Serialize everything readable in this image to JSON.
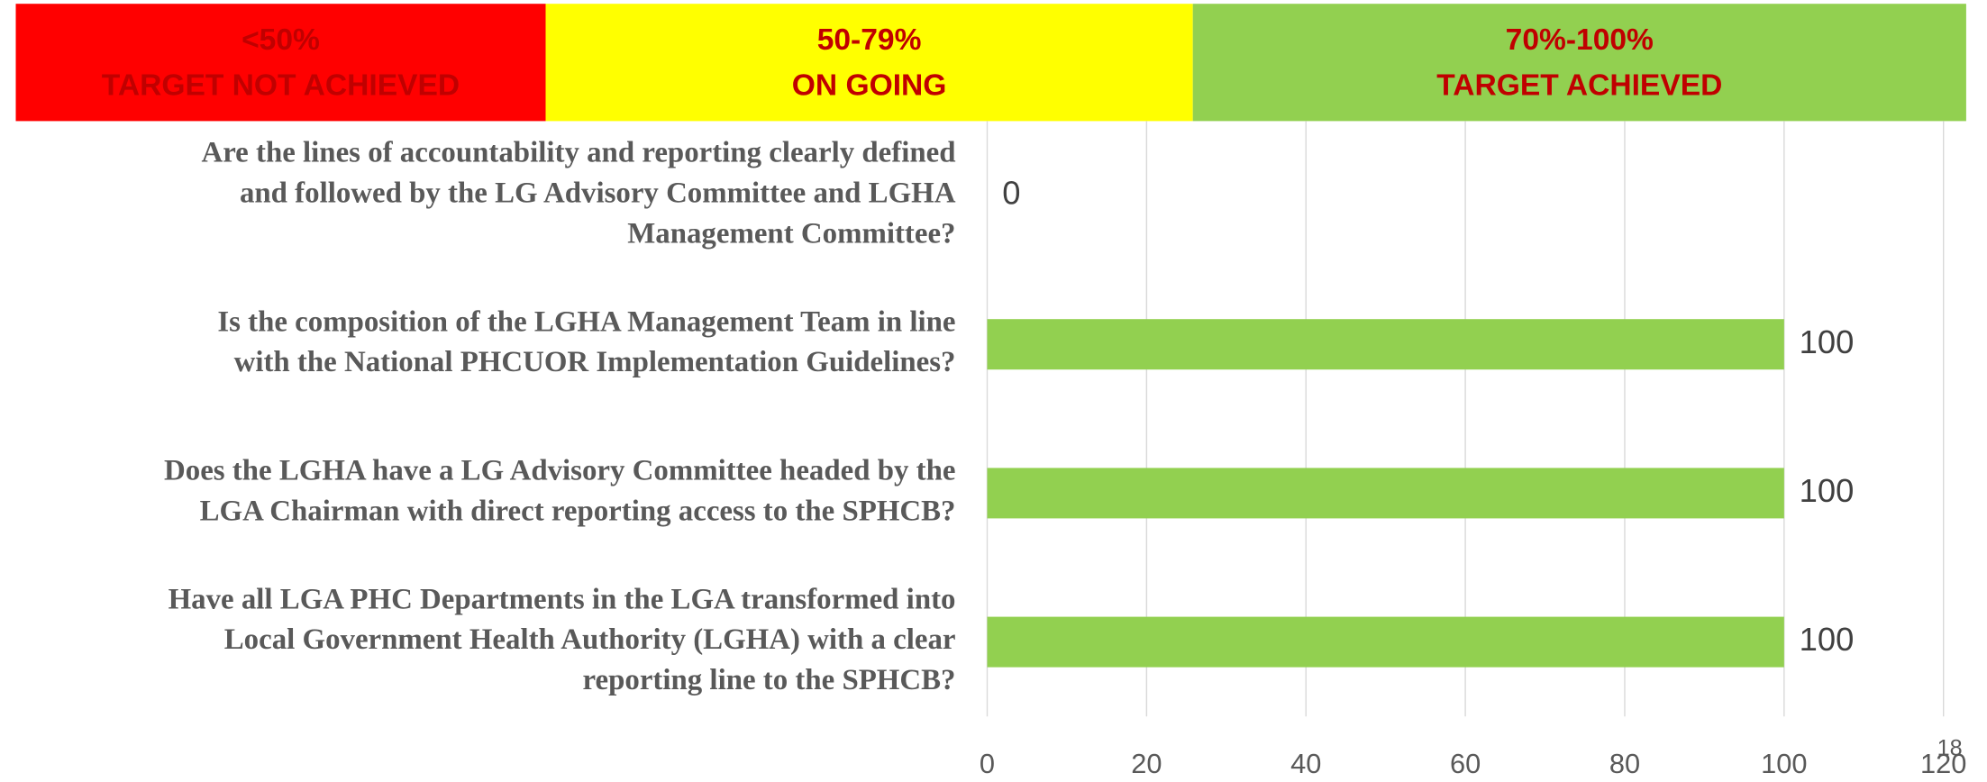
{
  "chart_data": {
    "type": "bar",
    "orientation": "horizontal",
    "bands": [
      {
        "range": "<50%",
        "label": "TARGET NOT ACHIEVED",
        "color": "#ff0000"
      },
      {
        "range": "50-79%",
        "label": "ON GOING",
        "color": "#ffff00"
      },
      {
        "range": "70%-100%",
        "label": "TARGET ACHIEVED",
        "color": "#92d050"
      }
    ],
    "categories": [
      [
        "Are the lines of accountability and reporting clearly defined",
        "and followed by the LG Advisory Committee and LGHA",
        "Management Committee?"
      ],
      [
        "Is the composition of the LGHA Management Team in line",
        "with the National PHCUOR Implementation Guidelines?"
      ],
      [
        "Does the LGHA have a LG Advisory Committee headed by the",
        "LGA Chairman with direct reporting access to the SPHCB?"
      ],
      [
        "Have all LGA PHC Departments in the LGA transformed into",
        "Local Government Health Authority (LGHA) with a clear",
        "reporting line to the SPHCB?"
      ]
    ],
    "values": [
      0,
      100,
      100,
      100
    ],
    "color": "#92d050",
    "xlim": [
      0,
      120
    ],
    "xticks": [
      0,
      20,
      40,
      60,
      80,
      100,
      120
    ],
    "grid": true,
    "page_number": "18"
  }
}
